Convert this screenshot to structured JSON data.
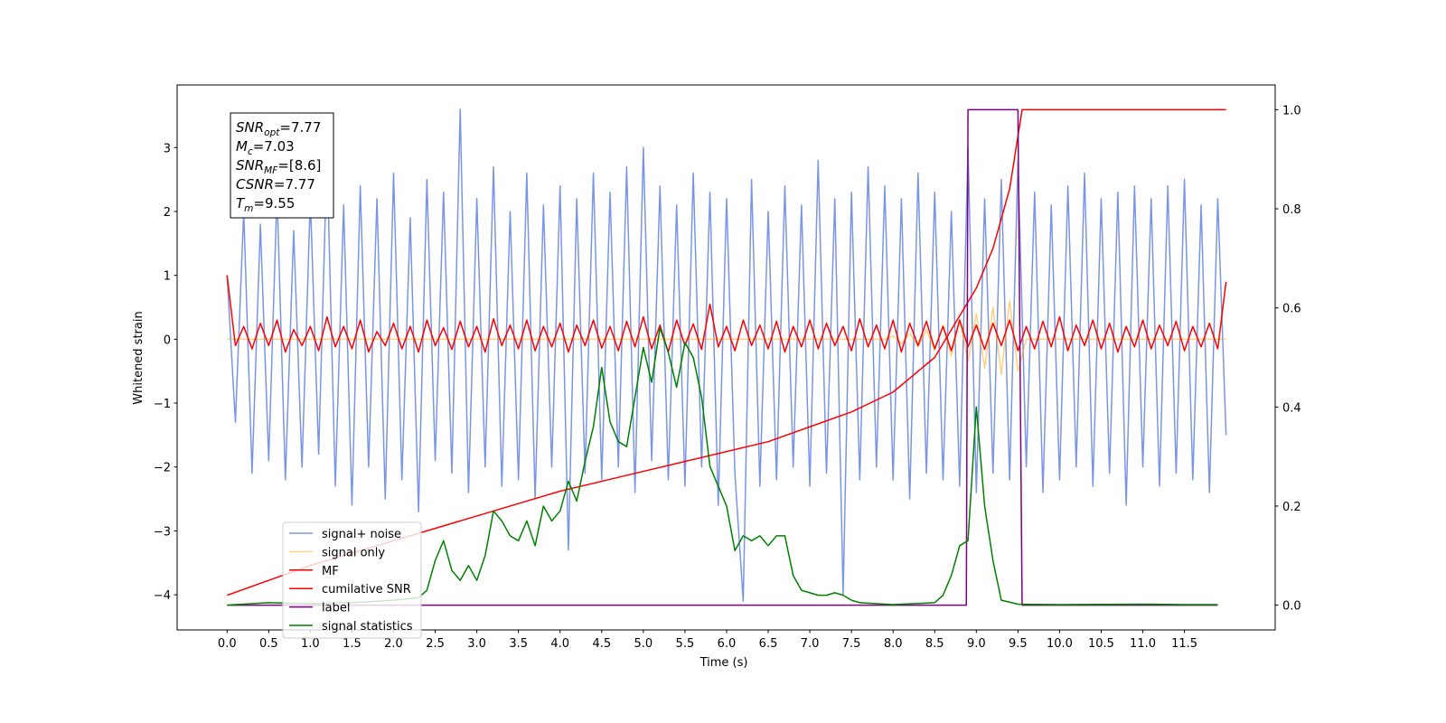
{
  "chart_data": {
    "type": "line",
    "xlabel": "Time (s)",
    "ylabel": "Whitened strain",
    "xlim": [
      -0.6,
      12.59
    ],
    "xticks": [
      {
        "value": 0,
        "label": "0.0"
      },
      0.5,
      {
        "value": 1,
        "label": "1.0"
      },
      1.5,
      {
        "value": 2,
        "label": "2.0"
      },
      2.5,
      {
        "value": 3,
        "label": "3.0"
      },
      3.5,
      {
        "value": 4,
        "label": "4.0"
      },
      4.5,
      {
        "value": 5,
        "label": "5.0"
      },
      5.5,
      {
        "value": 6,
        "label": "6.0"
      },
      6.5,
      {
        "value": 7,
        "label": "7.0"
      },
      7.5,
      {
        "value": 8,
        "label": "8.0"
      },
      8.5,
      {
        "value": 9,
        "label": "9.0"
      },
      9.5,
      {
        "value": 10,
        "label": "10.0"
      },
      10.5,
      {
        "value": 11,
        "label": "11.0"
      },
      11.5
    ],
    "ylim": [
      -4.55,
      3.98
    ],
    "yticks": [
      {
        "value": -4,
        "label": "−4"
      },
      {
        "value": -3,
        "label": "−3"
      },
      {
        "value": -2,
        "label": "−2"
      },
      {
        "value": -1,
        "label": "−1"
      },
      0,
      1,
      2,
      3
    ],
    "y2lim": [
      -0.05,
      1.05
    ],
    "y2ticks": [
      {
        "value": 0,
        "label": "0.0"
      },
      0.2,
      0.4,
      0.6,
      0.8,
      {
        "value": 1,
        "label": "1.0"
      }
    ],
    "legend_loc": "lower left",
    "annotation": [
      {
        "main": "SNR",
        "sub": "opt",
        "text": "=7.77"
      },
      {
        "main": "M",
        "sub": "c",
        "text": "=7.03"
      },
      {
        "main": "SNR",
        "sub": "MF",
        "text": "=[8.6]"
      },
      {
        "main": "CSNR",
        "sub": "",
        "text": "=7.77"
      },
      {
        "main": "T",
        "sub": "m",
        "text": "=9.55"
      }
    ],
    "x": [
      0,
      0.1,
      0.2,
      0.3,
      0.4,
      0.5,
      0.6,
      0.7,
      0.8,
      0.9,
      1,
      1.1,
      1.2,
      1.3,
      1.4,
      1.5,
      1.6,
      1.7,
      1.8,
      1.9,
      2,
      2.1,
      2.2,
      2.3,
      2.4,
      2.5,
      2.6,
      2.7,
      2.8,
      2.9,
      3,
      3.1,
      3.2,
      3.3,
      3.4,
      3.5,
      3.6,
      3.7,
      3.8,
      3.9,
      4,
      4.1,
      4.2,
      4.3,
      4.4,
      4.5,
      4.6,
      4.7,
      4.8,
      4.9,
      5,
      5.1,
      5.2,
      5.3,
      5.4,
      5.5,
      5.6,
      5.7,
      5.8,
      5.9,
      6,
      6.1,
      6.2,
      6.3,
      6.4,
      6.5,
      6.6,
      6.7,
      6.8,
      6.9,
      7,
      7.1,
      7.2,
      7.3,
      7.4,
      7.5,
      7.6,
      7.7,
      7.8,
      7.9,
      8,
      8.1,
      8.2,
      8.3,
      8.4,
      8.5,
      8.6,
      8.7,
      8.8,
      8.9,
      9,
      9.1,
      9.2,
      9.3,
      9.4,
      9.5,
      9.6,
      9.7,
      9.8,
      9.9,
      10,
      10.1,
      10.2,
      10.3,
      10.4,
      10.5,
      10.6,
      10.7,
      10.8,
      10.9,
      11,
      11.1,
      11.2,
      11.3,
      11.4,
      11.5,
      11.6,
      11.7,
      11.8,
      11.9,
      12
    ],
    "series": [
      {
        "name": "signal+ noise",
        "color": "#7a95e8",
        "values": [
          1.0,
          -1.3,
          2.0,
          -2.1,
          1.8,
          -1.9,
          2.3,
          -2.2,
          1.7,
          -2.0,
          2.2,
          -1.8,
          2.9,
          -2.3,
          2.1,
          -2.6,
          2.4,
          -2.0,
          2.2,
          -2.5,
          2.6,
          -2.2,
          1.9,
          -2.7,
          2.5,
          -1.9,
          2.3,
          -2.1,
          3.6,
          -2.4,
          2.2,
          -2.0,
          2.7,
          -2.3,
          2.0,
          -2.2,
          2.6,
          -2.5,
          2.1,
          -2.0,
          2.4,
          -3.3,
          2.2,
          -2.1,
          2.6,
          -2.2,
          2.3,
          -2.0,
          2.7,
          -2.4,
          3.0,
          -1.9,
          2.4,
          -2.2,
          2.1,
          -2.3,
          2.6,
          -2.0,
          2.3,
          -2.6,
          2.2,
          -2.1,
          -4.1,
          2.5,
          -2.3,
          2.0,
          -2.2,
          2.4,
          -2.0,
          2.1,
          -2.3,
          2.8,
          -2.1,
          2.2,
          -4.0,
          2.3,
          -2.2,
          2.7,
          -2.0,
          2.4,
          -2.2,
          2.2,
          -2.5,
          2.6,
          -2.1,
          2.3,
          -2.2,
          2.0,
          -2.3,
          3.0,
          -2.4,
          2.2,
          -2.1,
          2.5,
          -2.2,
          2.8,
          -2.0,
          2.3,
          -2.4,
          2.1,
          -2.2,
          2.4,
          -2.0,
          2.6,
          -2.3,
          2.2,
          -2.1,
          2.3,
          -2.6,
          2.4,
          -2.0,
          2.2,
          -2.3,
          2.4,
          -2.1,
          2.5,
          -2.2,
          2.1,
          -2.4,
          2.2,
          -1.5
        ]
      },
      {
        "name": "signal only",
        "color": "#ffa500",
        "alpha": 0.5,
        "values": [
          0,
          0,
          0,
          0,
          0,
          0,
          0,
          0,
          0,
          0,
          0,
          0,
          0,
          0,
          0,
          0,
          0,
          0,
          0,
          0,
          0,
          0,
          0,
          0,
          0,
          0,
          0,
          0,
          0,
          0,
          0,
          0,
          0,
          0,
          0,
          0,
          0,
          0,
          0,
          0,
          0,
          0,
          0,
          0,
          0,
          0,
          0,
          0,
          0,
          0,
          0,
          0,
          0,
          0,
          0,
          0,
          0,
          0,
          0,
          0,
          0,
          0,
          0,
          0,
          0,
          0,
          0,
          0,
          0,
          0,
          0,
          0,
          0,
          0,
          0,
          0,
          0,
          0,
          0,
          0,
          0.05,
          -0.07,
          0.09,
          -0.12,
          0.15,
          -0.18,
          0.22,
          -0.26,
          0.3,
          -0.35,
          0.4,
          -0.45,
          0.5,
          -0.55,
          0.6,
          -0.5,
          0,
          0,
          0,
          0,
          0,
          0,
          0,
          0,
          0,
          0,
          0,
          0,
          0,
          0,
          0,
          0,
          0,
          0,
          0,
          0,
          0,
          0,
          0,
          0,
          0
        ]
      },
      {
        "name": "MF",
        "color": "#ff0000",
        "values": [
          1.0,
          -0.1,
          0.2,
          -0.15,
          0.25,
          -0.1,
          0.3,
          -0.2,
          0.15,
          -0.1,
          0.2,
          -0.18,
          0.35,
          -0.12,
          0.2,
          -0.15,
          0.3,
          -0.2,
          0.12,
          -0.1,
          0.25,
          -0.15,
          0.2,
          -0.2,
          0.3,
          -0.1,
          0.18,
          -0.16,
          0.28,
          -0.12,
          0.2,
          -0.2,
          0.32,
          -0.1,
          0.22,
          -0.15,
          0.3,
          -0.18,
          0.2,
          -0.12,
          0.25,
          -0.2,
          0.22,
          -0.1,
          0.3,
          -0.14,
          0.2,
          -0.18,
          0.28,
          -0.12,
          0.35,
          -0.15,
          0.22,
          -0.2,
          0.3,
          -0.1,
          0.24,
          -0.16,
          0.55,
          -0.12,
          0.2,
          -0.18,
          0.3,
          -0.1,
          0.22,
          -0.15,
          0.28,
          -0.2,
          0.2,
          -0.12,
          0.3,
          -0.15,
          0.25,
          -0.1,
          0.2,
          -0.18,
          0.32,
          -0.12,
          0.22,
          -0.15,
          0.3,
          -0.2,
          0.25,
          -0.1,
          0.28,
          -0.15,
          0.2,
          -0.18,
          0.3,
          -0.12,
          0.22,
          -0.16,
          0.25,
          -0.1,
          0.3,
          -0.18,
          0.2,
          -0.15,
          0.28,
          -0.12,
          0.35,
          -0.18,
          0.22,
          -0.1,
          0.3,
          -0.15,
          0.25,
          -0.2,
          0.2,
          -0.12,
          0.3,
          -0.15,
          0.22,
          -0.1,
          0.28,
          -0.18,
          0.2,
          -0.12,
          0.25,
          -0.15,
          0.9
        ]
      },
      {
        "name": "cumilative SNR",
        "color": "#ff0000",
        "axis": "y2",
        "x": [
          0,
          0.5,
          1,
          1.5,
          2,
          2.5,
          3,
          3.5,
          4,
          4.5,
          5,
          5.5,
          6,
          6.5,
          7,
          7.5,
          8,
          8.5,
          9,
          9.2,
          9.4,
          9.55,
          12
        ],
        "values": [
          0.02,
          0.05,
          0.08,
          0.105,
          0.13,
          0.155,
          0.18,
          0.205,
          0.23,
          0.25,
          0.27,
          0.29,
          0.31,
          0.33,
          0.36,
          0.39,
          0.43,
          0.5,
          0.64,
          0.72,
          0.84,
          1.0,
          1.0
        ]
      },
      {
        "name": "label",
        "color": "#800080",
        "axis": "y2",
        "x": [
          0,
          8.88,
          8.9,
          9.5,
          9.55,
          11.9
        ],
        "values": [
          0,
          0,
          1,
          1,
          0,
          0
        ]
      },
      {
        "name": "signal statistics",
        "color": "#008000",
        "axis": "y2",
        "x": [
          0,
          0.5,
          1,
          1.5,
          2,
          2.3,
          2.4,
          2.5,
          2.6,
          2.7,
          2.8,
          2.9,
          3,
          3.1,
          3.2,
          3.3,
          3.4,
          3.5,
          3.6,
          3.7,
          3.8,
          3.9,
          4,
          4.1,
          4.2,
          4.3,
          4.4,
          4.5,
          4.6,
          4.7,
          4.8,
          4.9,
          5,
          5.1,
          5.2,
          5.3,
          5.4,
          5.5,
          5.6,
          5.7,
          5.8,
          5.9,
          6,
          6.1,
          6.2,
          6.3,
          6.4,
          6.5,
          6.6,
          6.7,
          6.8,
          6.9,
          7,
          7.1,
          7.2,
          7.3,
          7.4,
          7.5,
          7.6,
          8,
          8.5,
          8.6,
          8.7,
          8.8,
          8.9,
          9,
          9.1,
          9.2,
          9.3,
          9.5,
          10,
          11,
          11.5,
          11.9
        ],
        "values": [
          0,
          0.005,
          0.003,
          0.005,
          0.01,
          0.015,
          0.03,
          0.09,
          0.13,
          0.07,
          0.05,
          0.08,
          0.05,
          0.1,
          0.19,
          0.17,
          0.14,
          0.13,
          0.17,
          0.12,
          0.2,
          0.17,
          0.19,
          0.25,
          0.21,
          0.29,
          0.36,
          0.48,
          0.37,
          0.33,
          0.32,
          0.42,
          0.52,
          0.45,
          0.56,
          0.51,
          0.44,
          0.53,
          0.5,
          0.42,
          0.28,
          0.24,
          0.2,
          0.11,
          0.14,
          0.13,
          0.14,
          0.12,
          0.14,
          0.14,
          0.06,
          0.03,
          0.025,
          0.02,
          0.02,
          0.025,
          0.02,
          0.01,
          0.005,
          0.001,
          0.005,
          0.02,
          0.06,
          0.12,
          0.13,
          0.4,
          0.2,
          0.09,
          0.01,
          0.002,
          0.001,
          0.002,
          0.001,
          0.001
        ]
      }
    ]
  }
}
